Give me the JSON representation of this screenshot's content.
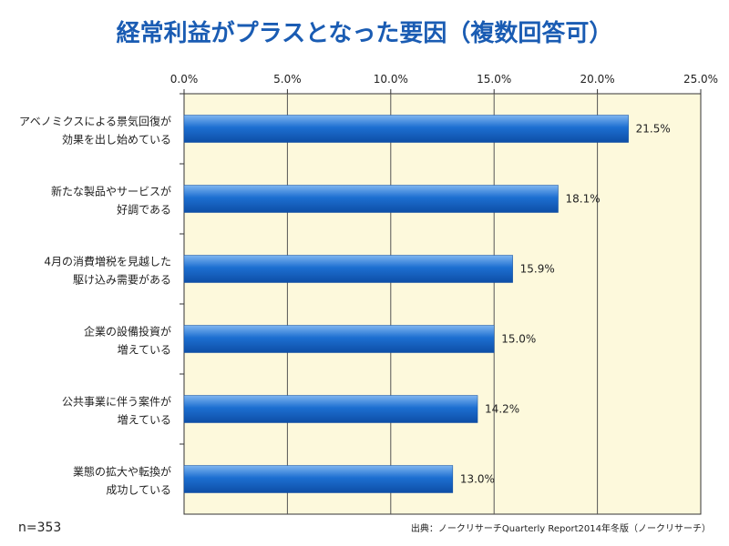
{
  "chart_data": {
    "type": "bar",
    "orientation": "horizontal",
    "title": "経常利益がプラスとなった要因（複数回答可）",
    "categories": [
      [
        "アベノミクスによる景気回復が",
        "効果を出し始めている"
      ],
      [
        "新たな製品やサービスが",
        "好調である"
      ],
      [
        "4月の消費増税を見越した",
        "駆け込み需要がある"
      ],
      [
        "企業の設備投資が",
        "増えている"
      ],
      [
        "公共事業に伴う案件が",
        "増えている"
      ],
      [
        "業態の拡大や転換が",
        "成功している"
      ]
    ],
    "values": [
      21.5,
      18.1,
      15.9,
      15.0,
      14.2,
      13.0
    ],
    "value_labels": [
      "21.5%",
      "18.1%",
      "15.9%",
      "15.0%",
      "14.2%",
      "13.0%"
    ],
    "x_ticks": [
      "0.0%",
      "5.0%",
      "10.0%",
      "15.0%",
      "20.0%",
      "25.0%"
    ],
    "xlim": [
      0,
      25
    ],
    "grid": true,
    "colors": {
      "bar": "#1d6fd1",
      "plot_bg": "#fdf9dc",
      "title": "#1a5cb3",
      "grid": "#555555"
    }
  },
  "sample_size": "n=353",
  "source": "出典：ノークリサーチQuarterly Report2014年冬版（ノークリサーチ）"
}
